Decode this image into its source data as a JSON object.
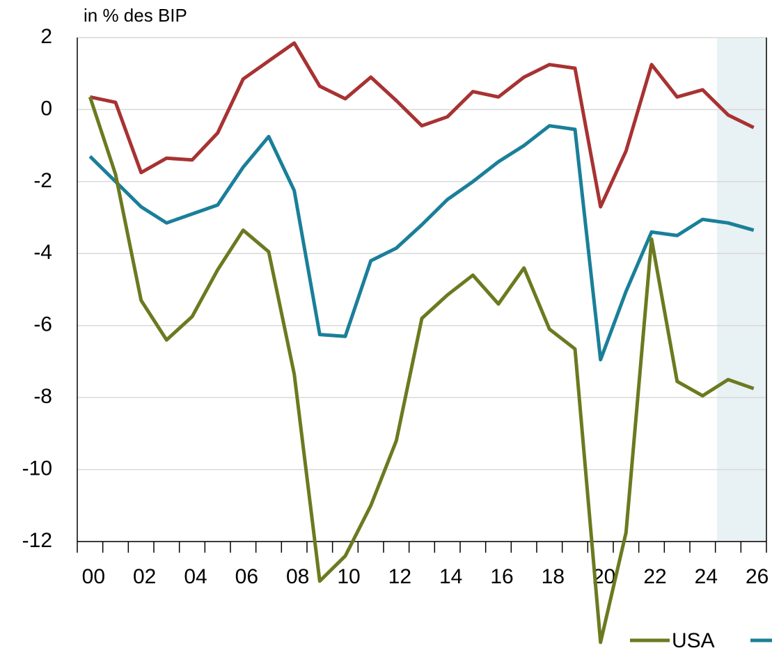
{
  "chart_data": {
    "type": "line",
    "y_axis_label": "in % des BIP",
    "categories": [
      "00",
      null,
      "02",
      null,
      "04",
      null,
      "06",
      null,
      "08",
      null,
      "10",
      null,
      "12",
      null,
      "14",
      null,
      "16",
      null,
      "18",
      null,
      "20",
      null,
      "22",
      null,
      "24",
      null,
      "26"
    ],
    "series": [
      {
        "name": "USA",
        "color": "#6b7a1f",
        "values": [
          0.35,
          -1.8,
          -5.3,
          -6.4,
          -5.75,
          -4.45,
          -3.35,
          -3.95,
          -7.35,
          -13.1,
          -12.4,
          -11.0,
          -9.2,
          -5.8,
          -5.15,
          -4.6,
          -5.4,
          -4.4,
          -6.1,
          -6.65,
          -14.8,
          -11.75,
          -3.6,
          -7.55,
          -7.95,
          -7.5,
          -7.75
        ]
      },
      {
        "color": "#1a7f99",
        "values": [
          -1.3,
          -2.0,
          -2.7,
          -3.15,
          -2.9,
          -2.65,
          -1.6,
          -0.75,
          -2.25,
          -6.25,
          -6.3,
          -4.2,
          -3.85,
          -3.2,
          -2.5,
          -2.0,
          -1.45,
          -1.0,
          -0.45,
          -0.55,
          -6.95,
          -5.05,
          -3.4,
          -3.5,
          -3.05,
          -3.15,
          -3.35
        ]
      },
      {
        "color": "#a83232",
        "values": [
          0.35,
          0.2,
          -1.75,
          -1.35,
          -1.4,
          -0.65,
          0.85,
          1.35,
          1.85,
          0.65,
          0.3,
          0.9,
          0.25,
          -0.45,
          -0.2,
          0.5,
          0.35,
          0.9,
          1.25,
          1.15,
          -2.7,
          -1.15,
          1.25,
          0.35,
          0.55,
          -0.15,
          -0.5
        ]
      }
    ],
    "ylim": [
      -12,
      2
    ],
    "yticks": [
      -12,
      -10,
      -8,
      -6,
      -4,
      -2,
      0,
      2
    ],
    "grid": true
  }
}
